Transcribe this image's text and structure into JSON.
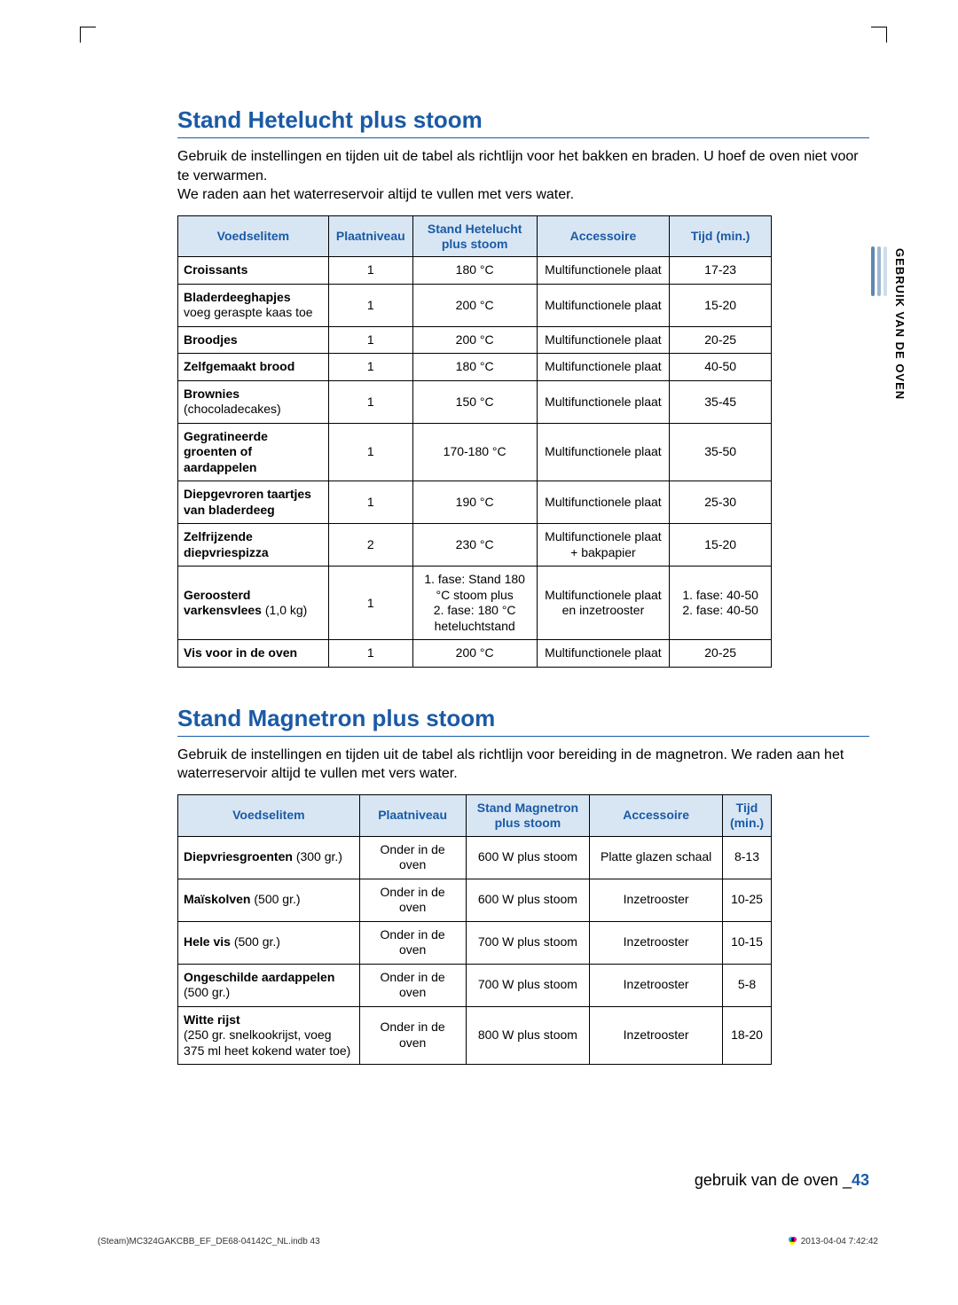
{
  "colors": {
    "accent": "#1a5aa6",
    "header_bg": "#d8e6f3",
    "border": "#000000",
    "text": "#000000",
    "side_bar_dark": "#5e88b0",
    "side_bar_med": "#9cb8d3",
    "side_bar_light": "#cfdce9"
  },
  "side_label": "GEBRUIK VAN DE OVEN",
  "section1": {
    "title": "Stand Hetelucht plus stoom",
    "intro_lines": [
      "Gebruik de instellingen en tijden uit de tabel als richtlijn voor het bakken en braden. U hoef de oven niet voor te verwarmen.",
      "We raden aan het waterreservoir altijd te vullen met vers water."
    ],
    "columns": [
      "Voedselitem",
      "Plaatniveau",
      "Stand Hetelucht plus stoom",
      "Accessoire",
      "Tijd (min.)"
    ],
    "col_widths": [
      "170px",
      "95px",
      "140px",
      "150px",
      "115px"
    ],
    "rows": [
      {
        "item_bold": "Croissants",
        "item_sub": "",
        "level": "1",
        "setting": "180 °C",
        "acc": "Multifunctionele plaat",
        "time": "17-23"
      },
      {
        "item_bold": "Bladerdeeghapjes",
        "item_sub": "voeg geraspte kaas toe",
        "level": "1",
        "setting": "200 °C",
        "acc": "Multifunctionele plaat",
        "time": "15-20"
      },
      {
        "item_bold": "Broodjes",
        "item_sub": "",
        "level": "1",
        "setting": "200 °C",
        "acc": "Multifunctionele plaat",
        "time": "20-25"
      },
      {
        "item_bold": "Zelfgemaakt brood",
        "item_sub": "",
        "level": "1",
        "setting": "180 °C",
        "acc": "Multifunctionele plaat",
        "time": "40-50"
      },
      {
        "item_bold": "Brownies",
        "item_sub": "(chocoladecakes)",
        "level": "1",
        "setting": "150 °C",
        "acc": "Multifunctionele plaat",
        "time": "35-45"
      },
      {
        "item_bold": "Gegratineerde groenten of aardappelen",
        "item_sub": "",
        "level": "1",
        "setting": "170-180 °C",
        "acc": "Multifunctionele plaat",
        "time": "35-50"
      },
      {
        "item_bold": "Diepgevroren taartjes van bladerdeeg",
        "item_sub": "",
        "level": "1",
        "setting": "190 °C",
        "acc": "Multifunctionele plaat",
        "time": "25-30"
      },
      {
        "item_bold": "Zelfrijzende diepvriespizza",
        "item_sub": "",
        "level": "2",
        "setting": "230 °C",
        "acc": "Multifunctionele plaat + bakpapier",
        "time": "15-20"
      },
      {
        "item_bold": "Geroosterd varkensvlees",
        "item_sub": " (1,0 kg)",
        "level": "1",
        "setting": "1. fase: Stand 180 °C stoom plus\n2. fase: 180 °C heteluchtstand",
        "acc": "Multifunctionele plaat en inzetrooster",
        "time": "1. fase: 40-50\n2. fase: 40-50"
      },
      {
        "item_bold": "Vis voor in de oven",
        "item_sub": "",
        "level": "1",
        "setting": "200 °C",
        "acc": "Multifunctionele plaat",
        "time": "20-25"
      }
    ]
  },
  "section2": {
    "title": "Stand Magnetron plus stoom",
    "intro_lines": [
      "Gebruik de instellingen en tijden uit de tabel als richtlijn voor bereiding in de magnetron. We raden aan het waterreservoir altijd te vullen met vers water."
    ],
    "columns": [
      "Voedselitem",
      "Plaatniveau",
      "Stand Magnetron plus stoom",
      "Accessoire",
      "Tijd (min.)"
    ],
    "col_widths": [
      "205px",
      "120px",
      "140px",
      "150px",
      "55px"
    ],
    "rows": [
      {
        "item_bold": "Diepvriesgroenten",
        "item_sub": " (300 gr.)",
        "level": "Onder in de oven",
        "setting": "600 W plus stoom",
        "acc": "Platte glazen schaal",
        "time": "8-13"
      },
      {
        "item_bold": "Maïskolven",
        "item_sub": " (500 gr.)",
        "level": "Onder in de oven",
        "setting": "600 W plus stoom",
        "acc": "Inzetrooster",
        "time": "10-25"
      },
      {
        "item_bold": "Hele vis",
        "item_sub": " (500 gr.)",
        "level": "Onder in de oven",
        "setting": "700 W plus stoom",
        "acc": "Inzetrooster",
        "time": "10-15"
      },
      {
        "item_bold": "Ongeschilde aardappelen",
        "item_sub": "(500 gr.)",
        "level": "Onder in de oven",
        "setting": "700 W plus stoom",
        "acc": "Inzetrooster",
        "time": "5-8"
      },
      {
        "item_bold": "Witte rijst",
        "item_sub": "(250 gr. snelkookrijst, voeg 375 ml heet kokend water toe)",
        "level": "Onder in de oven",
        "setting": "800 W plus stoom",
        "acc": "Inzetrooster",
        "time": "18-20"
      }
    ]
  },
  "footer_text": "gebruik van de oven _",
  "page_number": "43",
  "print_left": "(Steam)MC324GAKCBB_EF_DE68-04142C_NL.indb   43",
  "print_right": "2013-04-04    7:42:42"
}
